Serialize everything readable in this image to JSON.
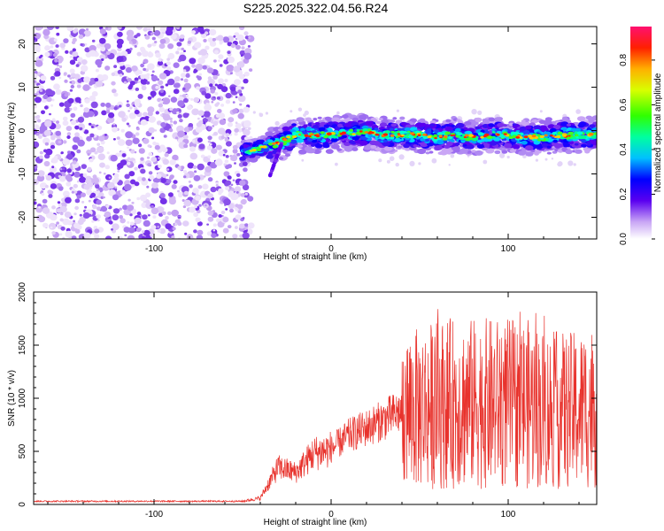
{
  "title": "S225.2025.322.04.56.R24",
  "chart_data": [
    {
      "type": "heatmap",
      "title": "S225.2025.322.04.56.R24",
      "xlabel": "Height of straight line (km)",
      "ylabel": "Frequency (Hz)",
      "xlim": [
        -168,
        150
      ],
      "ylim": [
        -25,
        24
      ],
      "x_ticks": [
        -100,
        0,
        100
      ],
      "y_ticks": [
        -20,
        -10,
        0,
        10,
        20
      ],
      "noise_region": {
        "x_start": -168,
        "x_end": -47
      },
      "ridge": [
        {
          "x": -50,
          "y": -5
        },
        {
          "x": -40,
          "y": -4
        },
        {
          "x": -30,
          "y": -3
        },
        {
          "x": -20,
          "y": -1
        },
        {
          "x": -10,
          "y": -1
        },
        {
          "x": 0,
          "y": -1
        },
        {
          "x": 10,
          "y": -0.5
        },
        {
          "x": 20,
          "y": -0.5
        },
        {
          "x": 30,
          "y": -1
        },
        {
          "x": 40,
          "y": -1
        },
        {
          "x": 50,
          "y": -1
        },
        {
          "x": 60,
          "y": -1.5
        },
        {
          "x": 70,
          "y": -1
        },
        {
          "x": 80,
          "y": -1.5
        },
        {
          "x": 90,
          "y": -1
        },
        {
          "x": 100,
          "y": -1
        },
        {
          "x": 110,
          "y": -1.5
        },
        {
          "x": 120,
          "y": -1.5
        },
        {
          "x": 130,
          "y": -1
        },
        {
          "x": 140,
          "y": -1
        },
        {
          "x": 150,
          "y": -1
        }
      ],
      "colorbar": {
        "label": "Normalized spectral amplitude",
        "range": [
          0.0,
          0.95
        ],
        "ticks": [
          "0.0",
          "0.2",
          "0.4",
          "0.6",
          "0.8"
        ]
      }
    },
    {
      "type": "line",
      "xlabel": "Height of straight line (km)",
      "ylabel": "SNR (10 * v/v)",
      "xlim": [
        -168,
        150
      ],
      "ylim": [
        0,
        2000
      ],
      "x_ticks": [
        -100,
        0,
        100
      ],
      "y_ticks": [
        0,
        500,
        1000,
        1500,
        2000
      ],
      "color": "#e8322c",
      "envelope": {
        "x": [
          -168,
          -50,
          -40,
          -30,
          -20,
          -10,
          0,
          10,
          20,
          30,
          40,
          50,
          60,
          70,
          80,
          90,
          100,
          110,
          120,
          130,
          140,
          150
        ],
        "y": [
          30,
          30,
          60,
          350,
          300,
          480,
          520,
          650,
          720,
          800,
          880,
          900,
          950,
          950,
          950,
          950,
          950,
          950,
          900,
          880,
          880,
          950
        ]
      }
    }
  ]
}
